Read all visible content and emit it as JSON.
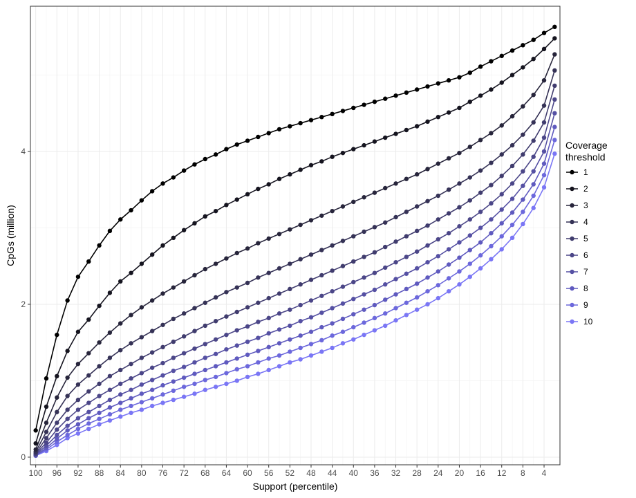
{
  "chart_data": {
    "type": "line",
    "xlabel": "Support (percentile)",
    "ylabel": "CpGs (million)",
    "x_reversed": true,
    "xlim": [
      101,
      1.0
    ],
    "ylim": [
      -0.1,
      5.9
    ],
    "x_ticks": [
      100,
      96,
      92,
      88,
      84,
      80,
      76,
      72,
      68,
      64,
      60,
      56,
      52,
      48,
      44,
      40,
      36,
      32,
      28,
      24,
      20,
      16,
      12,
      8,
      4
    ],
    "y_ticks": [
      0,
      2,
      4
    ],
    "grid": true,
    "legend_title": "Coverage\nthreshold",
    "legend_title_lines": [
      "Coverage",
      "threshold"
    ],
    "legend_position": "right",
    "x": [
      100,
      98,
      96,
      94,
      92,
      90,
      88,
      86,
      84,
      82,
      80,
      78,
      76,
      74,
      72,
      70,
      68,
      66,
      64,
      62,
      60,
      58,
      56,
      54,
      52,
      50,
      48,
      46,
      44,
      42,
      40,
      38,
      36,
      34,
      32,
      30,
      28,
      26,
      24,
      22,
      20,
      18,
      16,
      14,
      12,
      10,
      8,
      6,
      4,
      2
    ],
    "series": [
      {
        "name": "1",
        "color": "#000000",
        "values": [
          0.35,
          1.03,
          1.6,
          2.05,
          2.36,
          2.56,
          2.77,
          2.96,
          3.11,
          3.23,
          3.36,
          3.48,
          3.58,
          3.66,
          3.75,
          3.83,
          3.9,
          3.96,
          4.03,
          4.09,
          4.14,
          4.19,
          4.24,
          4.29,
          4.33,
          4.37,
          4.41,
          4.45,
          4.49,
          4.53,
          4.57,
          4.61,
          4.65,
          4.69,
          4.73,
          4.77,
          4.81,
          4.85,
          4.89,
          4.93,
          4.97,
          5.03,
          5.11,
          5.18,
          5.25,
          5.32,
          5.39,
          5.46,
          5.55,
          5.63
        ]
      },
      {
        "name": "2",
        "color": "#15141f",
        "values": [
          0.18,
          0.66,
          1.06,
          1.39,
          1.64,
          1.8,
          1.98,
          2.15,
          2.3,
          2.41,
          2.53,
          2.65,
          2.77,
          2.87,
          2.97,
          3.06,
          3.15,
          3.22,
          3.3,
          3.37,
          3.44,
          3.51,
          3.57,
          3.64,
          3.7,
          3.76,
          3.82,
          3.87,
          3.93,
          3.98,
          4.03,
          4.08,
          4.13,
          4.18,
          4.23,
          4.28,
          4.33,
          4.39,
          4.45,
          4.51,
          4.57,
          4.65,
          4.73,
          4.81,
          4.9,
          5.0,
          5.1,
          5.21,
          5.34,
          5.48
        ]
      },
      {
        "name": "3",
        "color": "#27253b",
        "values": [
          0.1,
          0.45,
          0.78,
          1.04,
          1.22,
          1.36,
          1.5,
          1.63,
          1.75,
          1.86,
          1.96,
          2.05,
          2.14,
          2.22,
          2.3,
          2.38,
          2.46,
          2.53,
          2.6,
          2.67,
          2.73,
          2.8,
          2.86,
          2.92,
          2.98,
          3.04,
          3.1,
          3.16,
          3.22,
          3.28,
          3.34,
          3.4,
          3.46,
          3.52,
          3.58,
          3.64,
          3.7,
          3.77,
          3.84,
          3.91,
          3.98,
          4.06,
          4.15,
          4.24,
          4.34,
          4.46,
          4.59,
          4.74,
          4.93,
          5.27
        ]
      },
      {
        "name": "4",
        "color": "#353256",
        "values": [
          0.07,
          0.33,
          0.59,
          0.8,
          0.95,
          1.07,
          1.19,
          1.3,
          1.4,
          1.49,
          1.57,
          1.65,
          1.73,
          1.81,
          1.88,
          1.95,
          2.02,
          2.09,
          2.16,
          2.22,
          2.28,
          2.35,
          2.41,
          2.47,
          2.53,
          2.59,
          2.65,
          2.71,
          2.77,
          2.83,
          2.89,
          2.95,
          3.01,
          3.07,
          3.14,
          3.21,
          3.28,
          3.35,
          3.42,
          3.5,
          3.58,
          3.66,
          3.75,
          3.85,
          3.96,
          4.08,
          4.22,
          4.38,
          4.6,
          5.06
        ]
      },
      {
        "name": "5",
        "color": "#403c6e",
        "values": [
          0.05,
          0.25,
          0.45,
          0.62,
          0.75,
          0.86,
          0.96,
          1.06,
          1.14,
          1.22,
          1.3,
          1.37,
          1.44,
          1.51,
          1.58,
          1.65,
          1.72,
          1.78,
          1.84,
          1.9,
          1.96,
          2.02,
          2.08,
          2.14,
          2.2,
          2.26,
          2.32,
          2.38,
          2.44,
          2.5,
          2.56,
          2.62,
          2.68,
          2.75,
          2.82,
          2.89,
          2.96,
          3.03,
          3.11,
          3.19,
          3.27,
          3.36,
          3.46,
          3.56,
          3.68,
          3.81,
          3.96,
          4.14,
          4.38,
          4.86
        ]
      },
      {
        "name": "6",
        "color": "#4b4688",
        "values": [
          0.04,
          0.19,
          0.36,
          0.5,
          0.62,
          0.71,
          0.8,
          0.88,
          0.96,
          1.03,
          1.1,
          1.17,
          1.23,
          1.3,
          1.36,
          1.42,
          1.48,
          1.54,
          1.6,
          1.66,
          1.71,
          1.77,
          1.82,
          1.88,
          1.93,
          1.99,
          2.05,
          2.11,
          2.17,
          2.23,
          2.29,
          2.35,
          2.41,
          2.48,
          2.55,
          2.62,
          2.69,
          2.77,
          2.85,
          2.93,
          3.02,
          3.11,
          3.21,
          3.32,
          3.44,
          3.58,
          3.74,
          3.93,
          4.18,
          4.68
        ]
      },
      {
        "name": "7",
        "color": "#5550a3",
        "values": [
          0.03,
          0.15,
          0.29,
          0.41,
          0.51,
          0.59,
          0.67,
          0.75,
          0.82,
          0.88,
          0.95,
          1.01,
          1.07,
          1.13,
          1.18,
          1.24,
          1.3,
          1.35,
          1.41,
          1.46,
          1.51,
          1.56,
          1.62,
          1.67,
          1.72,
          1.78,
          1.83,
          1.89,
          1.95,
          2.01,
          2.07,
          2.13,
          2.19,
          2.26,
          2.33,
          2.4,
          2.47,
          2.55,
          2.63,
          2.72,
          2.81,
          2.9,
          3.0,
          3.11,
          3.24,
          3.38,
          3.55,
          3.74,
          4.0,
          4.5
        ]
      },
      {
        "name": "8",
        "color": "#5f5abf",
        "values": [
          0.02,
          0.12,
          0.24,
          0.35,
          0.43,
          0.51,
          0.58,
          0.65,
          0.71,
          0.77,
          0.83,
          0.88,
          0.94,
          0.99,
          1.04,
          1.09,
          1.14,
          1.19,
          1.24,
          1.29,
          1.34,
          1.39,
          1.44,
          1.49,
          1.54,
          1.59,
          1.64,
          1.7,
          1.75,
          1.81,
          1.87,
          1.93,
          1.99,
          2.06,
          2.13,
          2.2,
          2.27,
          2.35,
          2.43,
          2.52,
          2.61,
          2.71,
          2.81,
          2.93,
          3.06,
          3.2,
          3.37,
          3.57,
          3.84,
          4.32
        ]
      },
      {
        "name": "9",
        "color": "#6c68dc",
        "values": [
          0.02,
          0.1,
          0.2,
          0.29,
          0.37,
          0.44,
          0.5,
          0.56,
          0.62,
          0.67,
          0.72,
          0.77,
          0.82,
          0.87,
          0.92,
          0.96,
          1.01,
          1.05,
          1.1,
          1.15,
          1.19,
          1.24,
          1.29,
          1.33,
          1.38,
          1.43,
          1.48,
          1.53,
          1.59,
          1.64,
          1.7,
          1.76,
          1.82,
          1.88,
          1.95,
          2.02,
          2.09,
          2.17,
          2.25,
          2.34,
          2.43,
          2.53,
          2.64,
          2.76,
          2.89,
          3.04,
          3.21,
          3.42,
          3.69,
          4.15
        ]
      },
      {
        "name": "10",
        "color": "#7a76f5",
        "values": [
          0.02,
          0.08,
          0.16,
          0.25,
          0.31,
          0.37,
          0.43,
          0.48,
          0.53,
          0.58,
          0.62,
          0.67,
          0.71,
          0.75,
          0.79,
          0.83,
          0.88,
          0.92,
          0.96,
          1.0,
          1.05,
          1.09,
          1.14,
          1.19,
          1.24,
          1.28,
          1.33,
          1.38,
          1.43,
          1.49,
          1.54,
          1.6,
          1.66,
          1.72,
          1.79,
          1.86,
          1.93,
          2.0,
          2.08,
          2.17,
          2.26,
          2.36,
          2.47,
          2.59,
          2.72,
          2.87,
          3.05,
          3.26,
          3.53,
          3.97
        ]
      }
    ]
  }
}
